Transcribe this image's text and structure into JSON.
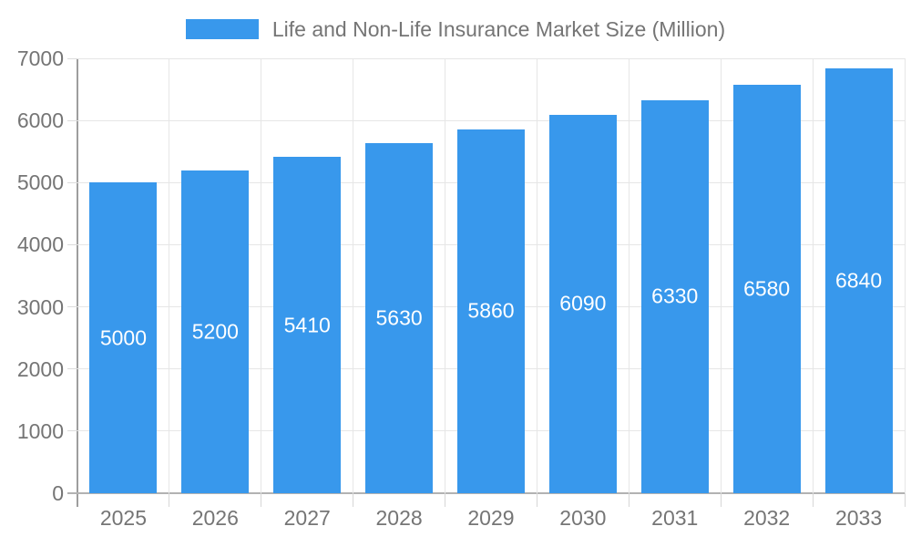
{
  "colors": {
    "bar": "#3898ec",
    "bar_label": "#ffffff",
    "text": "#757575",
    "grid": "#e6e6e6",
    "axis_y": "#9e9e9e",
    "axis_x": "#b2b2b2",
    "tick": "#d6d6d6",
    "background": "#ffffff"
  },
  "legend": {
    "label": "Life and Non-Life Insurance Market Size (Million)"
  },
  "chart_data": {
    "type": "bar",
    "title": "Life and Non-Life Insurance Market Size (Million)",
    "categories": [
      "2025",
      "2026",
      "2027",
      "2028",
      "2029",
      "2030",
      "2031",
      "2032",
      "2033"
    ],
    "values": [
      5000,
      5200,
      5410,
      5630,
      5860,
      6090,
      6330,
      6580,
      6840
    ],
    "bar_labels": [
      "5000",
      "5200",
      "5410",
      "5630",
      "5860",
      "6090",
      "6330",
      "6580",
      "6840"
    ],
    "yticks": [
      0,
      1000,
      2000,
      3000,
      4000,
      5000,
      6000,
      7000
    ],
    "ylim": [
      0,
      7000
    ],
    "xlabel": "",
    "ylabel": "",
    "grid": true,
    "legend_position": "top",
    "bar_labels_visible": true,
    "bar_label_position": "center"
  }
}
